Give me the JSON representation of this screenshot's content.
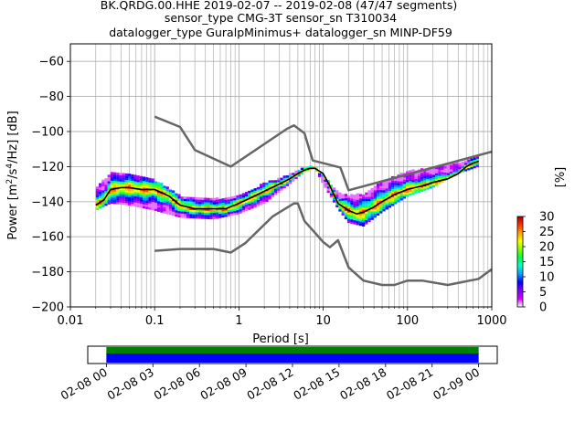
{
  "title_lines": [
    "BK.QRDG.00.HHE   2019-02-07 -- 2019-02-08  (47/47 segments)",
    "sensor_type CMG-3T sensor_sn T310034",
    "datalogger_type GuralpMinimus+ datalogger_sn MINP-DF59"
  ],
  "chart_data": {
    "type": "heatmap",
    "xlabel": "Period [s]",
    "ylabel": "Power [m^2/s^4/Hz] [dB]",
    "xscale": "log",
    "xlim": [
      0.01,
      1000
    ],
    "ylim": [
      -200,
      -50
    ],
    "xticks": [
      "0.01",
      "0.1",
      "1",
      "10",
      "100",
      "1000"
    ],
    "xtick_values": [
      0.01,
      0.1,
      1,
      10,
      100,
      1000
    ],
    "yticks": [
      "−200",
      "−180",
      "−160",
      "−140",
      "−120",
      "−100",
      "−80",
      "−60"
    ],
    "ytick_values": [
      -200,
      -180,
      -160,
      -140,
      -120,
      -100,
      -80,
      -60
    ],
    "grid": true,
    "colorbar": {
      "label": "[%]",
      "ticks": [
        "0",
        "5",
        "10",
        "15",
        "20",
        "25",
        "30"
      ],
      "tick_values": [
        0,
        5,
        10,
        15,
        20,
        25,
        30
      ],
      "range": [
        0,
        30
      ],
      "colors": [
        "#ffffff",
        "#d100ff",
        "#7f00ff",
        "#0000ff",
        "#00a0ff",
        "#00ffd0",
        "#00ff40",
        "#80ff00",
        "#ffff00",
        "#ffa000",
        "#ff3000",
        "#a00000"
      ]
    },
    "psd_band": {
      "period": [
        0.02,
        0.03,
        0.05,
        0.1,
        0.2,
        0.5,
        1,
        2,
        4,
        6,
        8,
        10,
        15,
        20,
        30,
        50,
        100,
        200,
        400,
        700
      ],
      "upper": [
        -133,
        -124,
        -125,
        -128,
        -137,
        -139,
        -137,
        -130,
        -125,
        -121,
        -120,
        -125,
        -135,
        -137,
        -136,
        -129,
        -123,
        -121,
        -118,
        -114
      ],
      "lower": [
        -145,
        -141,
        -142,
        -145,
        -149,
        -150,
        -147,
        -141,
        -130,
        -123,
        -121,
        -130,
        -144,
        -152,
        -154,
        -146,
        -137,
        -132,
        -124,
        -120
      ]
    },
    "series": [
      {
        "name": "",
        "color": "#000000",
        "period": [
          0.02,
          0.025,
          0.03,
          0.04,
          0.05,
          0.07,
          0.1,
          0.15,
          0.2,
          0.3,
          0.5,
          0.7,
          1,
          1.5,
          2,
          3,
          4,
          5,
          6,
          7,
          8,
          10,
          12,
          15,
          20,
          25,
          30,
          40,
          50,
          70,
          100,
          150,
          200,
          300,
          400,
          500,
          600,
          700
        ],
        "db": [
          -142,
          -139,
          -133,
          -132,
          -132,
          -133,
          -133,
          -137,
          -142,
          -144,
          -144,
          -144,
          -141,
          -137,
          -134,
          -130,
          -127,
          -124,
          -122,
          -121,
          -121,
          -124,
          -131,
          -141,
          -145,
          -147,
          -146,
          -143,
          -140,
          -136,
          -133,
          -131,
          -129,
          -127,
          -124,
          -120,
          -118,
          -117
        ]
      },
      {
        "name": "",
        "color": "#666666",
        "period": [
          0.1,
          0.2,
          0.3,
          0.8,
          3.7,
          4.5,
          6,
          7.5,
          16,
          20,
          1000
        ],
        "db": [
          -91.5,
          -97.4,
          -110.5,
          -120,
          -98.5,
          -96.5,
          -101,
          -116.5,
          -120.5,
          -133.5,
          -111.5
        ]
      },
      {
        "name": "",
        "color": "#666666",
        "period": [
          0.1,
          0.2,
          0.5,
          0.8,
          1.2,
          2.5,
          4.5,
          5,
          6,
          10,
          12,
          15,
          20,
          30,
          50,
          70,
          100,
          150,
          300,
          700,
          1000
        ],
        "db": [
          -168,
          -167,
          -167,
          -169,
          -163.5,
          -148.5,
          -141,
          -141,
          -151,
          -163,
          -166,
          -162,
          -177.5,
          -185,
          -187.5,
          -187.5,
          -185,
          -185,
          -187.5,
          -184,
          -178.5
        ]
      }
    ]
  },
  "time_axis": {
    "labels": [
      "02-08 00",
      "02-08 03",
      "02-08 06",
      "02-08 09",
      "02-08 12",
      "02-08 15",
      "02-08 18",
      "02-08 21",
      "02-09 00"
    ],
    "hours": [
      0,
      3,
      6,
      9,
      12,
      15,
      18,
      21,
      24
    ],
    "range_hours": [
      -1.2,
      25.2
    ],
    "coverage_hours": [
      0,
      24
    ],
    "coverage_colors": [
      "#008000",
      "#0000ff"
    ]
  }
}
